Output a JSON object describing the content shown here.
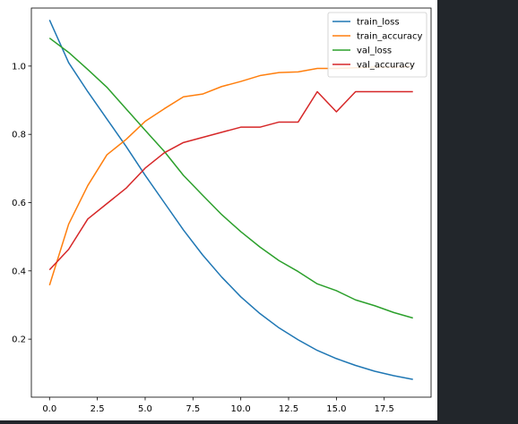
{
  "chart_data": {
    "type": "line",
    "title": "",
    "xlabel": "",
    "ylabel": "",
    "xlim": [
      -0.95,
      19.95
    ],
    "ylim": [
      0.03,
      1.17
    ],
    "grid": false,
    "legend_location": "top-right",
    "x_ticks": [
      0.0,
      2.5,
      5.0,
      7.5,
      10.0,
      12.5,
      15.0,
      17.5
    ],
    "x_tick_labels": [
      "0.0",
      "2.5",
      "5.0",
      "7.5",
      "10.0",
      "12.5",
      "15.0",
      "17.5"
    ],
    "y_ticks": [
      0.2,
      0.4,
      0.6,
      0.8,
      1.0
    ],
    "y_tick_labels": [
      "0.2",
      "0.4",
      "0.6",
      "0.8",
      "1.0"
    ],
    "x": [
      0,
      1,
      2,
      3,
      4,
      5,
      6,
      7,
      8,
      9,
      10,
      11,
      12,
      13,
      14,
      15,
      16,
      17,
      18,
      19
    ],
    "series": [
      {
        "name": "train_loss",
        "color": "#1f77b4",
        "values": [
          1.135,
          1.01,
          0.925,
          0.845,
          0.765,
          0.68,
          0.6,
          0.52,
          0.447,
          0.382,
          0.324,
          0.275,
          0.233,
          0.198,
          0.167,
          0.143,
          0.123,
          0.106,
          0.093,
          0.082
        ]
      },
      {
        "name": "train_accuracy",
        "color": "#ff7f0e",
        "values": [
          0.358,
          0.537,
          0.65,
          0.74,
          0.785,
          0.838,
          0.875,
          0.91,
          0.918,
          0.94,
          0.955,
          0.972,
          0.981,
          0.983,
          0.993,
          0.993,
          0.995,
          0.997,
          0.997,
          0.999
        ]
      },
      {
        "name": "val_loss",
        "color": "#2ca02c",
        "values": [
          1.082,
          1.04,
          0.99,
          0.938,
          0.875,
          0.812,
          0.75,
          0.68,
          0.622,
          0.565,
          0.515,
          0.47,
          0.43,
          0.398,
          0.362,
          0.342,
          0.315,
          0.298,
          0.278,
          0.262
        ]
      },
      {
        "name": "val_accuracy",
        "color": "#d62728",
        "values": [
          0.403,
          0.463,
          0.552,
          0.597,
          0.642,
          0.701,
          0.746,
          0.776,
          0.791,
          0.806,
          0.821,
          0.821,
          0.836,
          0.836,
          0.925,
          0.866,
          0.925,
          0.925,
          0.925,
          0.925
        ]
      }
    ]
  }
}
